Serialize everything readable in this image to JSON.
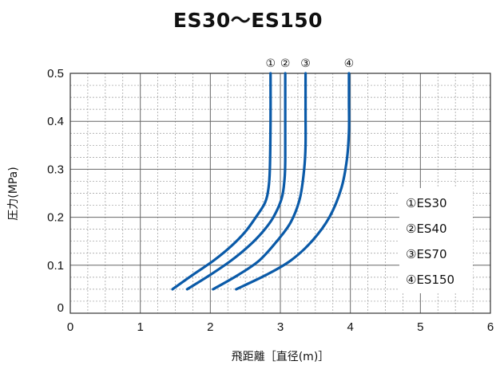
{
  "chart_data": {
    "type": "line",
    "title": "ES30〜ES150",
    "xlabel": "飛距離［直径(m)］",
    "ylabel": "圧力(MPa)",
    "xlim": [
      0,
      6
    ],
    "ylim": [
      0,
      0.5
    ],
    "x_ticks": [
      "0",
      "1",
      "2",
      "3",
      "4",
      "5",
      "6"
    ],
    "y_ticks": [
      "0",
      "0.1",
      "0.2",
      "0.3",
      "0.4",
      "0.5"
    ],
    "grid": true,
    "minor_grid": true,
    "legend_position": "right",
    "series_color": "#0a5aa8",
    "series": [
      {
        "name": "ES30",
        "marker": "①",
        "legend": "①ES30",
        "x": [
          1.46,
          1.75,
          2.05,
          2.3,
          2.5,
          2.65,
          2.78,
          2.83,
          2.85,
          2.86,
          2.86
        ],
        "y": [
          0.05,
          0.08,
          0.11,
          0.14,
          0.17,
          0.2,
          0.23,
          0.26,
          0.3,
          0.4,
          0.5
        ]
      },
      {
        "name": "ES40",
        "marker": "②",
        "legend": "②ES40",
        "x": [
          1.67,
          2.0,
          2.3,
          2.55,
          2.75,
          2.9,
          3.02,
          3.06,
          3.07,
          3.07,
          3.07
        ],
        "y": [
          0.05,
          0.08,
          0.11,
          0.14,
          0.17,
          0.2,
          0.24,
          0.28,
          0.32,
          0.4,
          0.5
        ]
      },
      {
        "name": "ES70",
        "marker": "③",
        "legend": "③ES70",
        "x": [
          2.04,
          2.4,
          2.7,
          2.95,
          3.15,
          3.28,
          3.34,
          3.36,
          3.36,
          3.36
        ],
        "y": [
          0.05,
          0.08,
          0.11,
          0.15,
          0.19,
          0.24,
          0.3,
          0.35,
          0.42,
          0.5
        ]
      },
      {
        "name": "ES150",
        "marker": "④",
        "legend": "④ES150",
        "x": [
          2.37,
          2.8,
          3.15,
          3.45,
          3.7,
          3.87,
          3.95,
          3.98,
          3.98,
          3.98
        ],
        "y": [
          0.05,
          0.08,
          0.11,
          0.15,
          0.2,
          0.26,
          0.32,
          0.38,
          0.44,
          0.5
        ]
      }
    ]
  }
}
